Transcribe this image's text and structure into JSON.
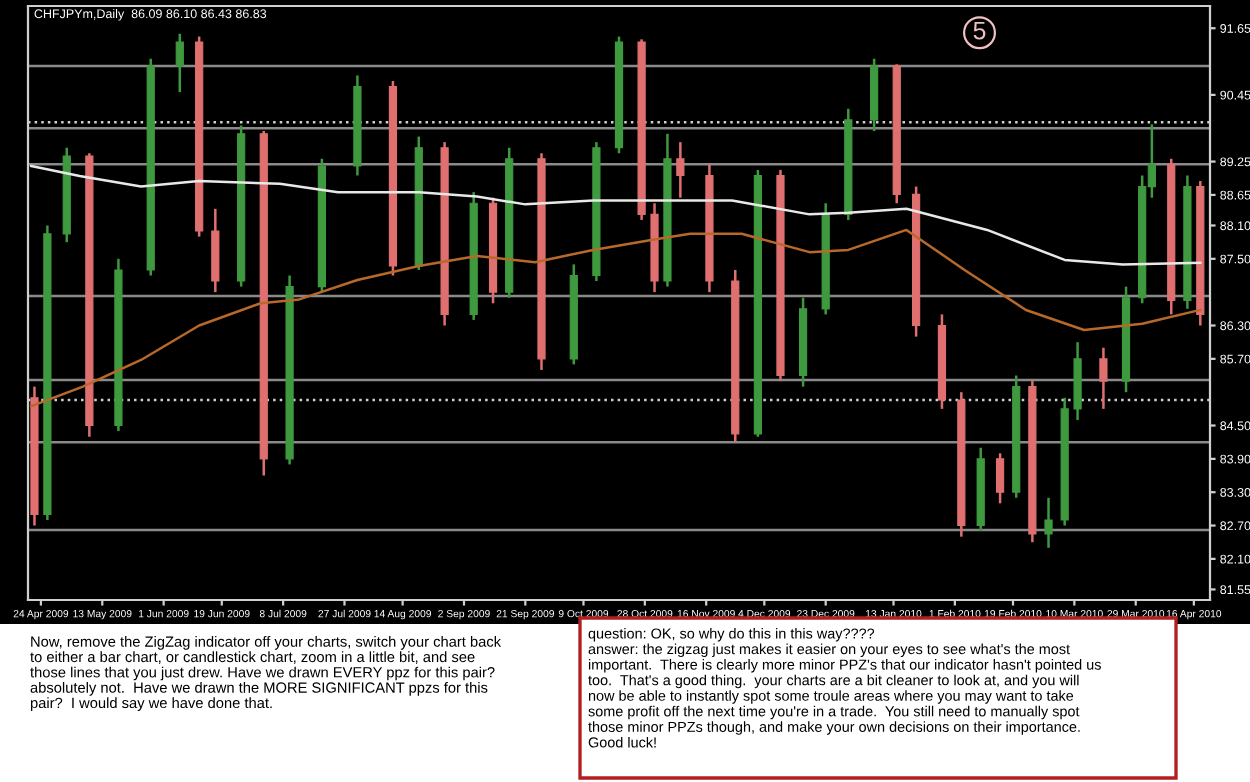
{
  "chart_data": {
    "type": "candlestick",
    "title": "CHFJPYm,Daily  86.09 86.10 86.43 86.83",
    "x": [
      "2009-04-22",
      "2009-04-26",
      "2009-05-02",
      "2009-05-09",
      "2009-05-18",
      "2009-05-28",
      "2009-06-06",
      "2009-06-12",
      "2009-06-17",
      "2009-06-25",
      "2009-07-02",
      "2009-07-10",
      "2009-07-20",
      "2009-07-31",
      "2009-08-11",
      "2009-08-19",
      "2009-08-27",
      "2009-09-05",
      "2009-09-11",
      "2009-09-16",
      "2009-09-26",
      "2009-10-06",
      "2009-10-13",
      "2009-10-20",
      "2009-10-27",
      "2009-10-31",
      "2009-11-04",
      "2009-11-08",
      "2009-11-17",
      "2009-11-25",
      "2009-12-02",
      "2009-12-09",
      "2009-12-16",
      "2009-12-23",
      "2009-12-30",
      "2010-01-07",
      "2010-01-14",
      "2010-01-20",
      "2010-01-28",
      "2010-02-03",
      "2010-02-09",
      "2010-02-15",
      "2010-02-20",
      "2010-02-25",
      "2010-03-02",
      "2010-03-07",
      "2010-03-11",
      "2010-03-19",
      "2010-03-26",
      "2010-03-31",
      "2010-04-03",
      "2010-04-09",
      "2010-04-14",
      "2010-04-18"
    ],
    "ohlc": [
      [
        85.0,
        85.2,
        82.7,
        82.9
      ],
      [
        82.9,
        88.1,
        82.8,
        87.95
      ],
      [
        87.95,
        89.5,
        87.8,
        89.35
      ],
      [
        89.35,
        89.4,
        84.3,
        84.5
      ],
      [
        84.5,
        87.5,
        84.4,
        87.3
      ],
      [
        87.3,
        91.1,
        87.2,
        90.97
      ],
      [
        90.97,
        91.55,
        90.5,
        91.4
      ],
      [
        91.4,
        91.5,
        87.9,
        88.0
      ],
      [
        88.0,
        88.4,
        86.9,
        87.1
      ],
      [
        87.1,
        89.9,
        87.0,
        89.75
      ],
      [
        89.75,
        89.8,
        83.6,
        83.9
      ],
      [
        83.9,
        87.2,
        83.8,
        87.0
      ],
      [
        87.0,
        89.3,
        86.9,
        89.17
      ],
      [
        89.17,
        90.8,
        89.0,
        90.6
      ],
      [
        90.6,
        90.7,
        87.2,
        87.37
      ],
      [
        87.37,
        89.7,
        87.3,
        89.5
      ],
      [
        89.5,
        89.6,
        86.3,
        86.5
      ],
      [
        86.5,
        88.7,
        86.4,
        88.5
      ],
      [
        88.5,
        88.6,
        86.7,
        86.9
      ],
      [
        86.9,
        89.5,
        86.8,
        89.3
      ],
      [
        89.3,
        89.4,
        85.5,
        85.7
      ],
      [
        85.7,
        87.4,
        85.6,
        87.2
      ],
      [
        87.2,
        89.6,
        87.1,
        89.5
      ],
      [
        89.5,
        91.5,
        89.4,
        91.4
      ],
      [
        91.4,
        91.45,
        88.2,
        88.3
      ],
      [
        88.3,
        88.5,
        86.9,
        87.1
      ],
      [
        87.1,
        89.75,
        87.0,
        89.3
      ],
      [
        89.3,
        89.6,
        88.6,
        89.0
      ],
      [
        89.0,
        89.2,
        86.9,
        87.1
      ],
      [
        87.1,
        87.3,
        84.2,
        84.35
      ],
      [
        84.35,
        89.1,
        84.3,
        89.0
      ],
      [
        89.0,
        89.1,
        85.3,
        85.4
      ],
      [
        85.4,
        86.8,
        85.2,
        86.6
      ],
      [
        86.6,
        88.5,
        86.5,
        88.3
      ],
      [
        88.3,
        90.2,
        88.2,
        90.0
      ],
      [
        90.0,
        91.1,
        89.8,
        90.97
      ],
      [
        90.97,
        91.0,
        88.5,
        88.66
      ],
      [
        88.66,
        88.8,
        86.1,
        86.3
      ],
      [
        86.3,
        86.5,
        84.8,
        84.96
      ],
      [
        84.96,
        85.1,
        82.5,
        82.7
      ],
      [
        82.7,
        84.1,
        82.6,
        83.9
      ],
      [
        83.9,
        84.0,
        83.1,
        83.3
      ],
      [
        83.3,
        85.4,
        83.2,
        85.2
      ],
      [
        85.2,
        85.3,
        82.4,
        82.55
      ],
      [
        82.55,
        83.2,
        82.3,
        82.8
      ],
      [
        82.8,
        85.0,
        82.7,
        84.8
      ],
      [
        84.8,
        86.0,
        84.6,
        85.7
      ],
      [
        85.7,
        85.9,
        84.8,
        85.3
      ],
      [
        85.3,
        87.0,
        85.1,
        86.8
      ],
      [
        86.8,
        89.0,
        86.7,
        88.8
      ],
      [
        88.8,
        89.92,
        88.6,
        89.2
      ],
      [
        89.2,
        89.3,
        86.5,
        86.75
      ],
      [
        86.75,
        89.0,
        86.6,
        88.8
      ],
      [
        88.8,
        88.9,
        86.3,
        86.5
      ]
    ],
    "colors": [
      "#e07070",
      "#3f9a3f",
      "#3f9a3f",
      "#e07070",
      "#3f9a3f",
      "#3f9a3f",
      "#3f9a3f",
      "#e07070",
      "#e07070",
      "#3f9a3f",
      "#e07070",
      "#3f9a3f",
      "#3f9a3f",
      "#3f9a3f",
      "#e07070",
      "#3f9a3f",
      "#e07070",
      "#3f9a3f",
      "#e07070",
      "#3f9a3f",
      "#e07070",
      "#3f9a3f",
      "#3f9a3f",
      "#3f9a3f",
      "#e07070",
      "#e07070",
      "#3f9a3f",
      "#e07070",
      "#e07070",
      "#e07070",
      "#3f9a3f",
      "#e07070",
      "#3f9a3f",
      "#3f9a3f",
      "#3f9a3f",
      "#3f9a3f",
      "#e07070",
      "#e07070",
      "#e07070",
      "#e07070",
      "#3f9a3f",
      "#e07070",
      "#3f9a3f",
      "#e07070",
      "#3f9a3f",
      "#3f9a3f",
      "#3f9a3f",
      "#e07070",
      "#3f9a3f",
      "#3f9a3f",
      "#3f9a3f",
      "#e07070",
      "#3f9a3f",
      "#e07070"
    ],
    "series": [
      {
        "type": "line",
        "color": "#e8e8e8",
        "x": [
          "2009-04-21",
          "2009-05-06",
          "2009-05-25",
          "2009-06-12",
          "2009-07-07",
          "2009-07-25",
          "2009-08-19",
          "2009-09-06",
          "2009-09-21",
          "2009-10-12",
          "2009-10-30",
          "2009-11-24",
          "2009-12-18",
          "2009-12-30",
          "2010-01-17",
          "2010-02-11",
          "2010-03-07",
          "2010-03-25",
          "2010-04-18"
        ],
        "values": [
          89.17,
          88.99,
          88.8,
          88.9,
          88.85,
          88.7,
          88.7,
          88.62,
          88.48,
          88.55,
          88.55,
          88.55,
          88.3,
          88.33,
          88.4,
          88.02,
          87.48,
          87.4,
          87.43
        ]
      },
      {
        "type": "line",
        "color": "#b8692a",
        "x": [
          "2009-04-21",
          "2009-05-07",
          "2009-05-25",
          "2009-06-12",
          "2009-07-01",
          "2009-07-13",
          "2009-07-31",
          "2009-08-19",
          "2009-09-06",
          "2009-09-24",
          "2009-10-12",
          "2009-10-30",
          "2009-11-11",
          "2009-11-27",
          "2009-12-18",
          "2009-12-30",
          "2010-01-17",
          "2010-02-04",
          "2010-02-23",
          "2010-03-13",
          "2010-03-31",
          "2010-04-18"
        ],
        "values": [
          84.85,
          85.2,
          85.68,
          86.3,
          86.7,
          86.77,
          87.12,
          87.37,
          87.55,
          87.44,
          87.66,
          87.84,
          87.95,
          87.95,
          87.62,
          87.66,
          88.02,
          87.3,
          86.58,
          86.22,
          86.33,
          86.58
        ]
      }
    ],
    "ref_lines": [
      {
        "axis": "y",
        "value": 90.97,
        "color": "#8a8a8a",
        "line_style": "solid"
      },
      {
        "axis": "y",
        "value": 89.96,
        "color": "#d0d0d0",
        "line_style": "dotted"
      },
      {
        "axis": "y",
        "value": 89.85,
        "color": "#8a8a8a",
        "line_style": "solid"
      },
      {
        "axis": "y",
        "value": 89.2,
        "color": "#8a8a8a",
        "line_style": "solid"
      },
      {
        "axis": "y",
        "value": 86.83,
        "color": "#8a8a8a",
        "line_style": "solid"
      },
      {
        "axis": "y",
        "value": 85.32,
        "color": "#8a8a8a",
        "line_style": "solid"
      },
      {
        "axis": "y",
        "value": 84.96,
        "color": "#d0d0d0",
        "line_style": "dotted"
      },
      {
        "axis": "y",
        "value": 84.2,
        "color": "#8a8a8a",
        "line_style": "solid"
      },
      {
        "axis": "y",
        "value": 82.62,
        "color": "#8a8a8a",
        "line_style": "solid"
      }
    ],
    "xlim": [
      "2009-04-20",
      "2010-04-21"
    ],
    "xticks": [
      {
        "value": "2009-04-24",
        "label": "24 Apr 2009"
      },
      {
        "value": "2009-05-13",
        "label": "13 May 2009"
      },
      {
        "value": "2009-06-01",
        "label": "1 Jun 2009"
      },
      {
        "value": "2009-06-19",
        "label": "19 Jun 2009"
      },
      {
        "value": "2009-07-08",
        "label": "8 Jul 2009"
      },
      {
        "value": "2009-07-27",
        "label": "27 Jul 2009"
      },
      {
        "value": "2009-08-14",
        "label": "14 Aug 2009"
      },
      {
        "value": "2009-09-02",
        "label": "2 Sep 2009"
      },
      {
        "value": "2009-09-21",
        "label": "21 Sep 2009"
      },
      {
        "value": "2009-10-09",
        "label": "9 Oct 2009"
      },
      {
        "value": "2009-10-28",
        "label": "28 Oct 2009"
      },
      {
        "value": "2009-11-16",
        "label": "16 Nov 2009"
      },
      {
        "value": "2009-12-04",
        "label": "4 Dec 2009"
      },
      {
        "value": "2009-12-23",
        "label": "23 Dec 2009"
      },
      {
        "value": "2010-01-13",
        "label": "13 Jan 2010"
      },
      {
        "value": "2010-02-01",
        "label": "1 Feb 2010"
      },
      {
        "value": "2010-02-19",
        "label": "19 Feb 2010"
      },
      {
        "value": "2010-03-10",
        "label": "10 Mar 2010"
      },
      {
        "value": "2010-03-29",
        "label": "29 Mar 2010"
      },
      {
        "value": "2010-04-16",
        "label": "16 Apr 2010"
      }
    ],
    "ylim": [
      81.36,
      92.05
    ],
    "yticks": [
      {
        "value": 91.65,
        "label": "91.65"
      },
      {
        "value": 90.45,
        "label": "90.45"
      },
      {
        "value": 89.25,
        "label": "89.25"
      },
      {
        "value": 88.65,
        "label": "88.65"
      },
      {
        "value": 88.1,
        "label": "88.10"
      },
      {
        "value": 87.5,
        "label": "87.50"
      },
      {
        "value": 86.3,
        "label": "86.30"
      },
      {
        "value": 85.7,
        "label": "85.70"
      },
      {
        "value": 84.5,
        "label": "84.50"
      },
      {
        "value": 83.9,
        "label": "83.90"
      },
      {
        "value": 83.3,
        "label": "83.30"
      },
      {
        "value": 82.7,
        "label": "82.70"
      },
      {
        "value": 82.1,
        "label": "82.10"
      },
      {
        "value": 81.55,
        "label": "81.55"
      }
    ],
    "grid": false,
    "legend": false,
    "annotations": [
      "5",
      "Now, remove the ZigZag indicator off your charts, switch your chart back\nto either a bar chart, or candlestick chart, zoom in a little bit, and see\nthose lines that you just drew. Have we drawn EVERY ppz for this pair?\nabsolutely not.  Have we drawn the MORE SIGNIFICANT ppzs for this\npair?  I would say we have done that.",
      "question: OK, so why do this in this way????\nanswer: the zigzag just makes it easier on your eyes to see what's the most\nimportant.  There is clearly more minor PPZ's that our indicator hasn't pointed us\ntoo.  That's a good thing.  your charts are a bit cleaner to look at, and you will\nnow be able to instantly spot some troule areas where you may want to take\nsome profit off the next time you're in a trade.  You still need to manually spot\nthose minor PPZs though, and make your own decisions on their importance.\nGood luck!"
    ]
  }
}
